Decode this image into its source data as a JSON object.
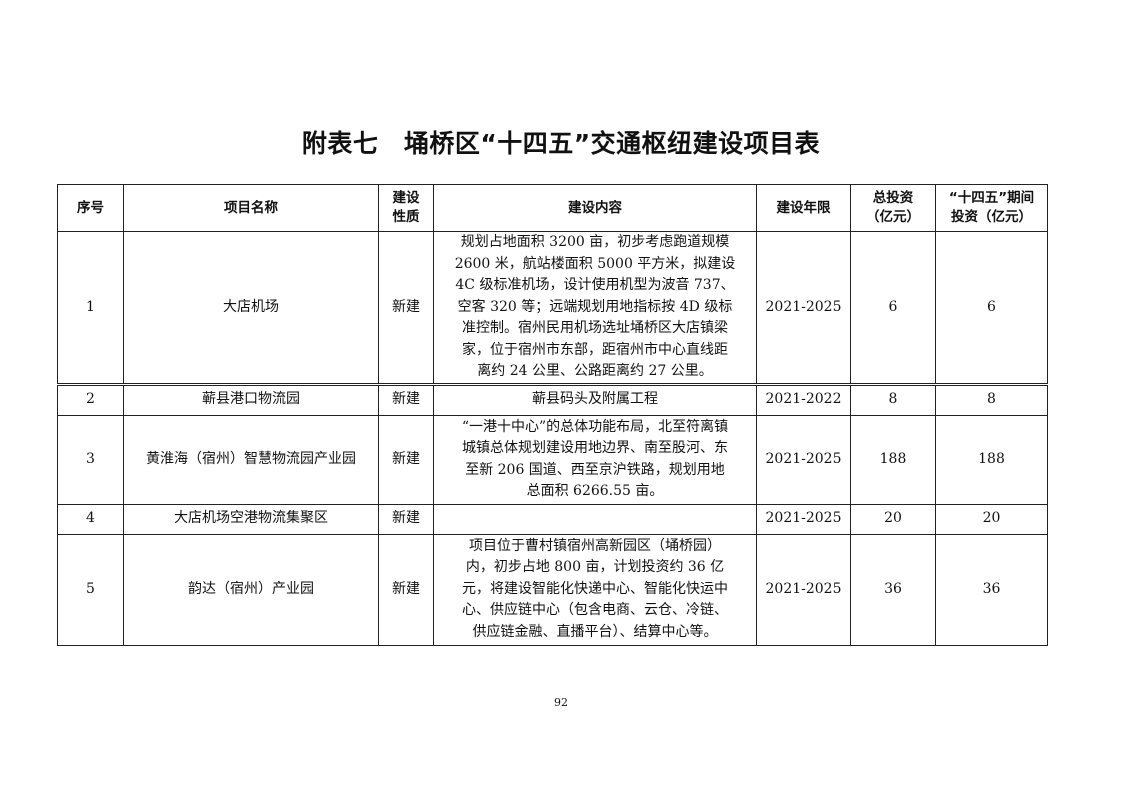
{
  "title": "附表七　埇桥区“十四五”交通枢纽建设项目表",
  "table": {
    "headers": [
      "序号",
      "项目名称",
      "建设性质",
      "建设内容",
      "建设年限",
      "总投资（亿元）",
      "“十四五”期间投资（亿元）"
    ],
    "header_lines": {
      "nature": [
        "建设",
        "性质"
      ],
      "total": [
        "总投资",
        "（亿元）"
      ],
      "period": [
        "“十四五”期间",
        "投资（亿元）"
      ]
    },
    "rows": [
      {
        "no": "1",
        "name": "大店机场",
        "nature": "新建",
        "content": [
          "规划占地面积 3200 亩，初步考虑跑道规模",
          "2600 米，航站楼面积 5000 平方米，拟建设",
          "4C 级标准机场，设计使用机型为波音 737、",
          "空客 320 等；远端规划用地指标按 4D 级标",
          "准控制。宿州民用机场选址埇桥区大店镇梁",
          "家，位于宿州市东部，距宿州市中心直线距",
          "离约 24 公里、公路距离约 27 公里。"
        ],
        "years": "2021-2025",
        "total": "6",
        "period": "6"
      },
      {
        "no": "2",
        "name": "蕲县港口物流园",
        "nature": "新建",
        "content": [
          "蕲县码头及附属工程"
        ],
        "years": "2021-2022",
        "total": "8",
        "period": "8"
      },
      {
        "no": "3",
        "name": "黄淮海（宿州）智慧物流园产业园",
        "nature": "新建",
        "content": [
          "“一港十中心”的总体功能布局，北至符离镇",
          "城镇总体规划建设用地边界、南至股河、东",
          "至新 206 国道、西至京沪铁路，规划用地",
          "总面积 6266.55 亩。"
        ],
        "years": "2021-2025",
        "total": "188",
        "period": "188"
      },
      {
        "no": "4",
        "name": "大店机场空港物流集聚区",
        "nature": "新建",
        "content": [],
        "years": "2021-2025",
        "total": "20",
        "period": "20"
      },
      {
        "no": "5",
        "name": "韵达（宿州）产业园",
        "nature": "新建",
        "content": [
          "项目位于曹村镇宿州高新园区（埇桥园）",
          "内，初步占地 800 亩，计划投资约 36 亿",
          "元，将建设智能化快递中心、智能化快运中",
          "心、供应链中心（包含电商、云仓、冷链、",
          "供应链金融、直播平台）、结算中心等。"
        ],
        "years": "2021-2025",
        "total": "36",
        "period": "36"
      }
    ]
  },
  "page_number": "92"
}
